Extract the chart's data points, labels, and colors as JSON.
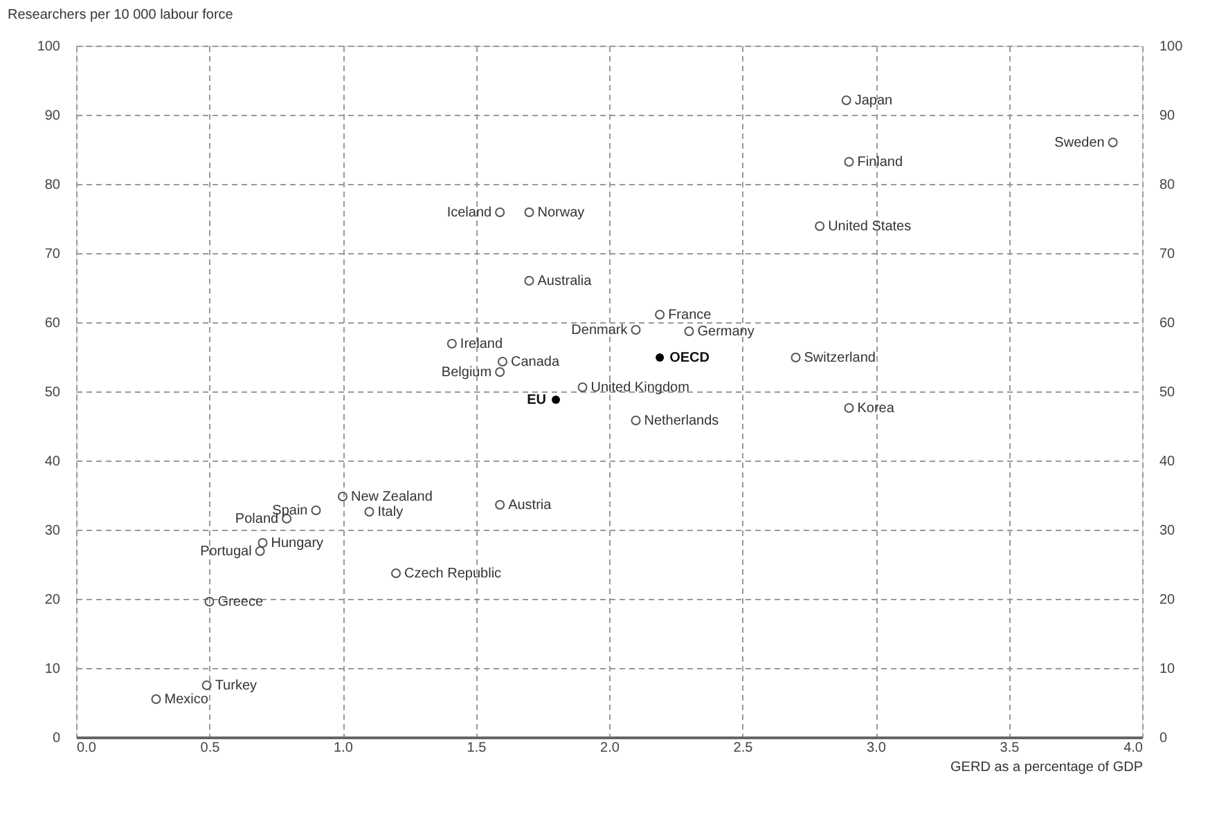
{
  "chart_data": {
    "type": "scatter",
    "xlabel": "GERD as a percentage of GDP",
    "ylabel": "Researchers per 10 000 labour force",
    "xlim": [
      0,
      4
    ],
    "xticks": [
      {
        "value": 0,
        "label": "0.0"
      },
      0.5,
      {
        "value": 1,
        "label": "1.0"
      },
      1.5,
      {
        "value": 2,
        "label": "2.0"
      },
      2.5,
      {
        "value": 3,
        "label": "3.0"
      },
      3.5,
      {
        "value": 4,
        "label": "4.0"
      }
    ],
    "ylim": [
      0,
      100
    ],
    "yticks": [
      0,
      10,
      20,
      30,
      40,
      50,
      60,
      70,
      80,
      90,
      100
    ],
    "y2lim": [
      0,
      100
    ],
    "y2ticks": [
      0,
      10,
      20,
      30,
      40,
      50,
      60,
      70,
      80,
      90,
      100
    ],
    "grid": true,
    "marker": "circle",
    "series": [
      {
        "color": "#555555",
        "x": [
          2.89,
          3.89,
          2.9,
          2.79,
          1.59,
          1.7,
          1.7,
          2.19,
          2.1,
          2.3,
          2.7,
          1.41,
          1.6,
          1.59,
          1.9,
          2.9,
          2.1,
          1.0,
          0.9,
          1.1,
          1.59,
          0.79,
          0.7,
          0.69,
          1.2,
          0.5,
          0.49,
          0.3
        ],
        "values": [
          92.1,
          86.0,
          83.2,
          73.9,
          75.9,
          75.9,
          66.0,
          61.1,
          58.9,
          58.7,
          54.9,
          56.9,
          54.3,
          52.8,
          50.6,
          47.6,
          45.8,
          34.8,
          32.8,
          32.6,
          33.6,
          31.6,
          28.1,
          26.9,
          23.7,
          19.6,
          7.5,
          5.5
        ]
      },
      {
        "color": "#000000",
        "x": [
          2.19,
          1.8
        ],
        "values": [
          54.9,
          48.8
        ]
      }
    ],
    "annotations": [
      {
        "text": "Japan",
        "x": 2.89,
        "y": 92.1
      },
      {
        "text": "Sweden",
        "x": 3.89,
        "y": 86.0
      },
      {
        "text": "Finland",
        "x": 2.9,
        "y": 83.2
      },
      {
        "text": "United States",
        "x": 2.79,
        "y": 73.9
      },
      {
        "text": "Iceland",
        "x": 1.59,
        "y": 75.9
      },
      {
        "text": "Norway",
        "x": 1.7,
        "y": 75.9
      },
      {
        "text": "Australia",
        "x": 1.7,
        "y": 66.0
      },
      {
        "text": "France",
        "x": 2.19,
        "y": 61.1
      },
      {
        "text": "Denmark",
        "x": 2.1,
        "y": 58.9
      },
      {
        "text": "Germany",
        "x": 2.3,
        "y": 58.7
      },
      {
        "text": "Switzerland",
        "x": 2.7,
        "y": 54.9
      },
      {
        "text": "Ireland",
        "x": 1.41,
        "y": 56.9
      },
      {
        "text": "Canada",
        "x": 1.6,
        "y": 54.3
      },
      {
        "text": "Belgium",
        "x": 1.59,
        "y": 52.8
      },
      {
        "text": "United Kingdom",
        "x": 1.9,
        "y": 50.6
      },
      {
        "text": "Korea",
        "x": 2.9,
        "y": 47.6
      },
      {
        "text": "Netherlands",
        "x": 2.1,
        "y": 45.8
      },
      {
        "text": "New Zealand",
        "x": 1.0,
        "y": 34.8
      },
      {
        "text": "Spain",
        "x": 0.9,
        "y": 32.8
      },
      {
        "text": "Italy",
        "x": 1.1,
        "y": 32.6
      },
      {
        "text": "Austria",
        "x": 1.59,
        "y": 33.6
      },
      {
        "text": "Poland",
        "x": 0.79,
        "y": 31.6
      },
      {
        "text": "Hungary",
        "x": 0.7,
        "y": 28.1
      },
      {
        "text": "Portugal",
        "x": 0.69,
        "y": 26.9
      },
      {
        "text": "Czech Republic",
        "x": 1.2,
        "y": 23.7
      },
      {
        "text": "Greece",
        "x": 0.5,
        "y": 19.6
      },
      {
        "text": "Turkey",
        "x": 0.49,
        "y": 7.5
      },
      {
        "text": "Mexico",
        "x": 0.3,
        "y": 5.5
      },
      {
        "text": "OECD",
        "x": 2.19,
        "y": 54.9
      },
      {
        "text": "EU",
        "x": 1.8,
        "y": 48.8
      }
    ]
  }
}
